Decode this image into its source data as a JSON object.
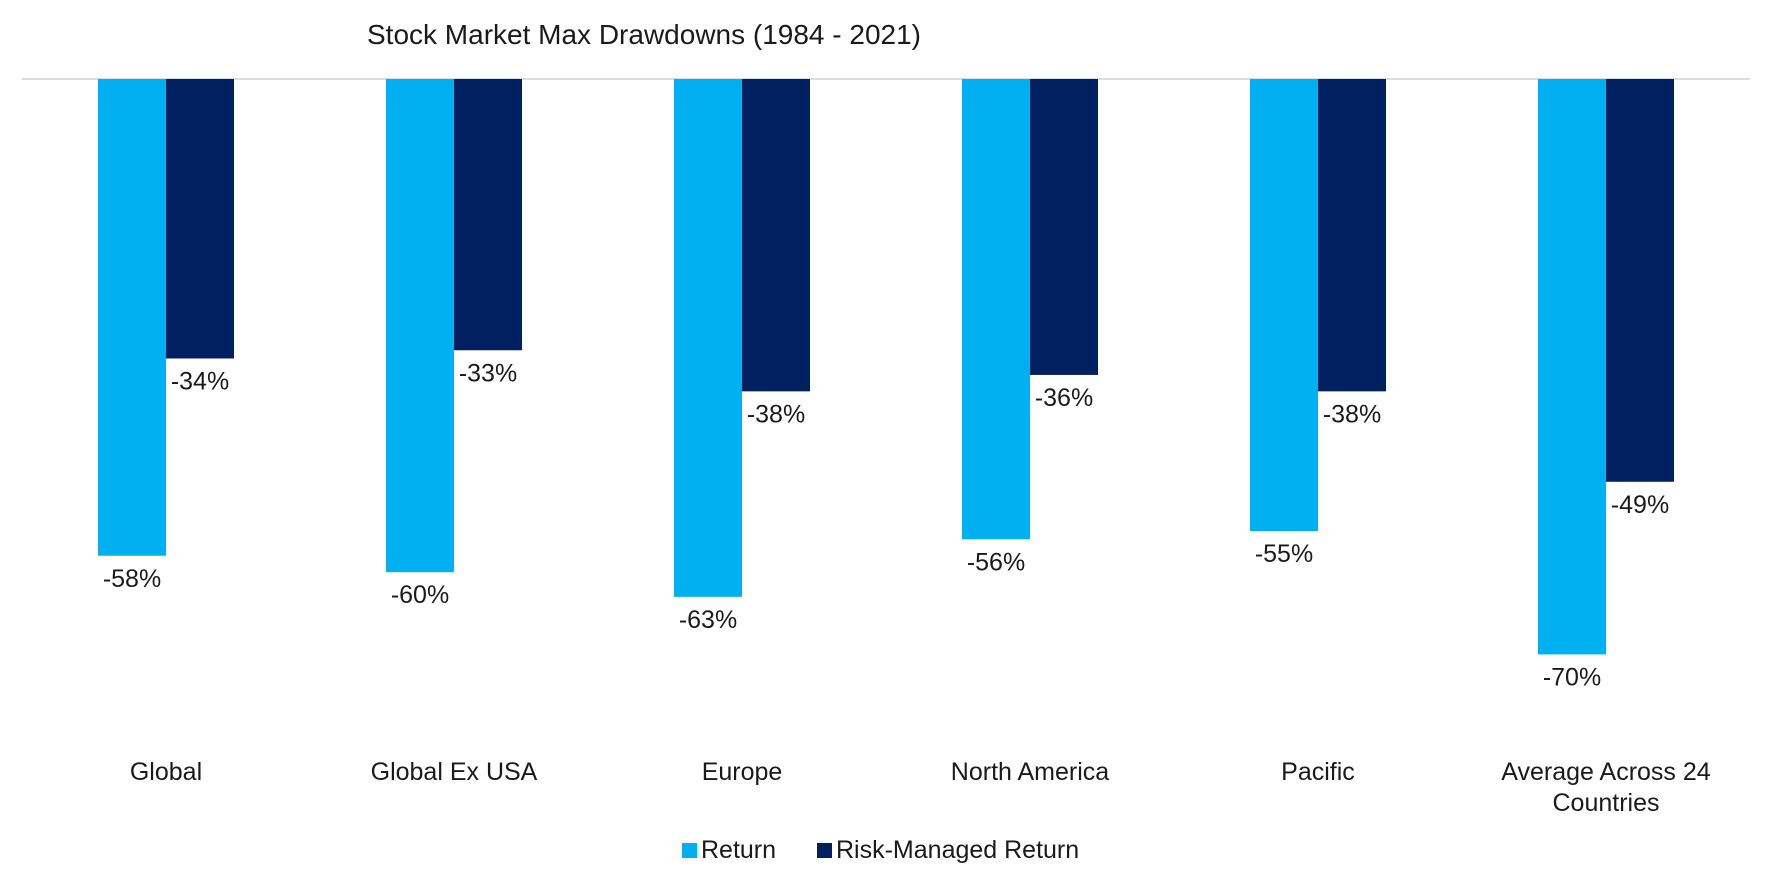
{
  "chart_data": {
    "type": "bar",
    "title": "Stock Market Max Drawdowns (1984 - 2021)",
    "xlabel": "",
    "ylabel": "",
    "ylim": [
      -0.8,
      0
    ],
    "grid": false,
    "legend_position": "bottom",
    "categories": [
      [
        "Global"
      ],
      [
        "Global Ex USA"
      ],
      [
        "Europe"
      ],
      [
        "North America"
      ],
      [
        "Pacific"
      ],
      [
        "Average Across 24",
        "Countries"
      ]
    ],
    "series": [
      {
        "name": "Return",
        "color": "#00B0F0",
        "values": [
          -0.58,
          -0.6,
          -0.63,
          -0.56,
          -0.55,
          -0.7
        ],
        "labels": [
          "-58%",
          "-60%",
          "-63%",
          "-56%",
          "-55%",
          "-70%"
        ]
      },
      {
        "name": "Risk-Managed Return",
        "color": "#002060",
        "values": [
          -0.34,
          -0.33,
          -0.38,
          -0.36,
          -0.38,
          -0.49
        ],
        "labels": [
          "-34%",
          "-33%",
          "-38%",
          "-36%",
          "-38%",
          "-49%"
        ]
      }
    ]
  }
}
